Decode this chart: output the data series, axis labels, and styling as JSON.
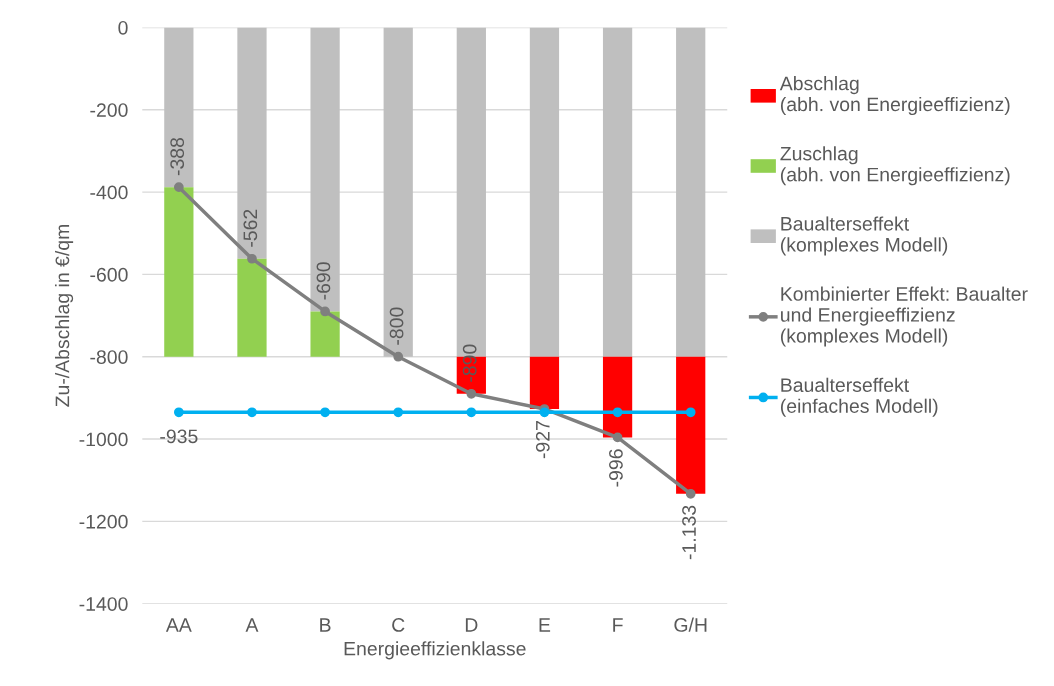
{
  "chart_data": {
    "type": "bar",
    "stacked": true,
    "xlabel": "Energieeffizienklasse",
    "ylabel": "Zu-/Abschlag in €/qm",
    "categories": [
      "AA",
      "A",
      "B",
      "C",
      "D",
      "E",
      "F",
      "G/H"
    ],
    "ylim": [
      -1400,
      0
    ],
    "yticks": [
      0,
      -200,
      -400,
      -600,
      -800,
      -1000,
      -1200,
      -1400
    ],
    "grid": "y",
    "legend": "right",
    "series": [
      {
        "name": "Baualterseffekt\n(komplexes Modell)",
        "color": "#bfbfbf",
        "values": [
          -388,
          -562,
          -690,
          -800,
          -800,
          -800,
          -800,
          -800
        ]
      },
      {
        "name": "Zuschlag\n(abh. von Energieeffizienz)",
        "color": "#92d050",
        "values": [
          -412,
          -238,
          -110,
          0,
          0,
          0,
          0,
          0
        ]
      },
      {
        "name": "Abschlag\n(abh. von Energieeffizienz)",
        "color": "#ff0000",
        "values": [
          0,
          0,
          0,
          0,
          -90,
          -127,
          -196,
          -333
        ]
      },
      {
        "name": "Kombinierter Effekt: Baualter\nund Energieeffizienz\n(komplexes Modell)",
        "type": "line",
        "color": "#7f7f7f",
        "marker": "circle",
        "values": [
          -388,
          -562,
          -690,
          -800,
          -890,
          -927,
          -996,
          -1133
        ],
        "value_labels": [
          "-388",
          "-562",
          "-690",
          "-800",
          "-890",
          "-927",
          "-996",
          "-1.133"
        ]
      },
      {
        "name": "Baualterseffekt\n(einfaches Modell)",
        "type": "line",
        "color": "#00b0f0",
        "marker": "circle",
        "values": [
          -935,
          -935,
          -935,
          -935,
          -935,
          -935,
          -935,
          -935
        ],
        "value_labels": [
          "-935",
          null,
          null,
          null,
          null,
          null,
          null,
          null
        ]
      }
    ]
  }
}
